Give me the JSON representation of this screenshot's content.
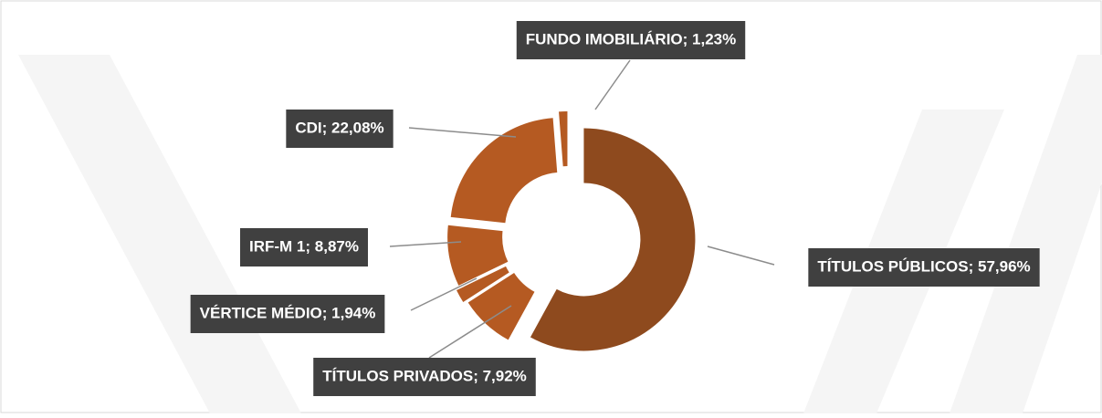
{
  "chart_data": {
    "type": "donut",
    "values": [
      57.96,
      7.92,
      1.94,
      8.87,
      22.08,
      1.23
    ],
    "value_labels": [
      "TÍTULOS PÚBLICOS; 57,96%",
      "TÍTULOS PRIVADOS; 7,92%",
      "VÉRTICE MÉDIO; 1,94%",
      "IRF-M 1; 8,87%",
      "CDI; 22,08%",
      "FUNDO IMOBILIÁRIO; 1,23%"
    ],
    "colors": [
      "#8e4a1e",
      "#b55a22",
      "#b55a22",
      "#b55a22",
      "#b55a22",
      "#b55a22"
    ]
  }
}
